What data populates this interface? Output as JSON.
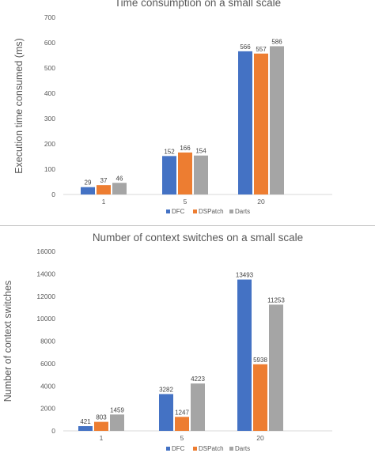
{
  "colors": {
    "DFC": "#4472c4",
    "DSPatch": "#ed7d31",
    "Darts": "#a5a5a5"
  },
  "chart_data": [
    {
      "type": "bar",
      "title": "Time consumption on a small scale",
      "ylabel": "Execution time consumed (ms)",
      "xlabel": "",
      "categories": [
        "1",
        "5",
        "20"
      ],
      "ylim": [
        0,
        700
      ],
      "yticks": [
        "0",
        "100",
        "200",
        "300",
        "400",
        "500",
        "600",
        "700"
      ],
      "grid": false,
      "legend": "bottom",
      "series": [
        {
          "name": "DFC",
          "values": [
            29,
            152,
            566
          ]
        },
        {
          "name": "DSPatch",
          "values": [
            37,
            166,
            557
          ]
        },
        {
          "name": "Darts",
          "values": [
            46,
            154,
            586
          ]
        }
      ]
    },
    {
      "type": "bar",
      "title": "Number of context switches on a small scale",
      "ylabel": "Number of context switches",
      "xlabel": "",
      "categories": [
        "1",
        "5",
        "20"
      ],
      "ylim": [
        0,
        16000
      ],
      "yticks": [
        "0",
        "2000",
        "4000",
        "6000",
        "8000",
        "10000",
        "12000",
        "14000",
        "16000"
      ],
      "grid": false,
      "legend": "bottom",
      "series": [
        {
          "name": "DFC",
          "values": [
            421,
            3282,
            13493
          ]
        },
        {
          "name": "DSPatch",
          "values": [
            803,
            1247,
            5938
          ]
        },
        {
          "name": "Darts",
          "values": [
            1459,
            4223,
            11253
          ]
        }
      ]
    }
  ]
}
